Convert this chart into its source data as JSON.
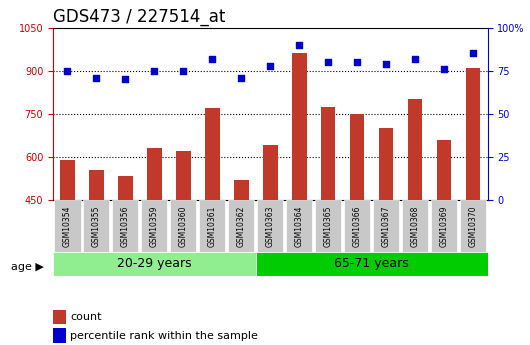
{
  "title": "GDS473 / 227514_at",
  "categories": [
    "GSM10354",
    "GSM10355",
    "GSM10356",
    "GSM10359",
    "GSM10360",
    "GSM10361",
    "GSM10362",
    "GSM10363",
    "GSM10364",
    "GSM10365",
    "GSM10366",
    "GSM10367",
    "GSM10368",
    "GSM10369",
    "GSM10370"
  ],
  "counts": [
    590,
    555,
    535,
    630,
    620,
    770,
    520,
    640,
    960,
    775,
    750,
    700,
    800,
    660,
    910
  ],
  "percentile_ranks": [
    75,
    71,
    70,
    75,
    75,
    82,
    71,
    78,
    90,
    80,
    80,
    79,
    82,
    76,
    85
  ],
  "group1_label": "20-29 years",
  "group1_count": 7,
  "group2_label": "65-71 years",
  "group2_count": 8,
  "age_label": "age",
  "ylim_left": [
    450,
    1050
  ],
  "ylim_right": [
    0,
    100
  ],
  "yticks_left": [
    450,
    600,
    750,
    900,
    1050
  ],
  "yticks_right": [
    0,
    25,
    50,
    75,
    100
  ],
  "yticklabels_right": [
    "0",
    "25",
    "50",
    "75",
    "100%"
  ],
  "bar_color": "#c0392b",
  "dot_color": "#0000cc",
  "bar_width": 0.5,
  "background_color": "#ffffff",
  "plot_bg_color": "#ffffff",
  "group1_bg": "#90ee90",
  "group2_bg": "#00cc00",
  "tick_label_bg": "#c8c8c8",
  "dotted_line_color": "#000000",
  "left_axis_color": "#cc0000",
  "right_axis_color": "#0000cc",
  "title_fontsize": 12,
  "tick_fontsize": 7,
  "legend_fontsize": 8,
  "group_fontsize": 9
}
